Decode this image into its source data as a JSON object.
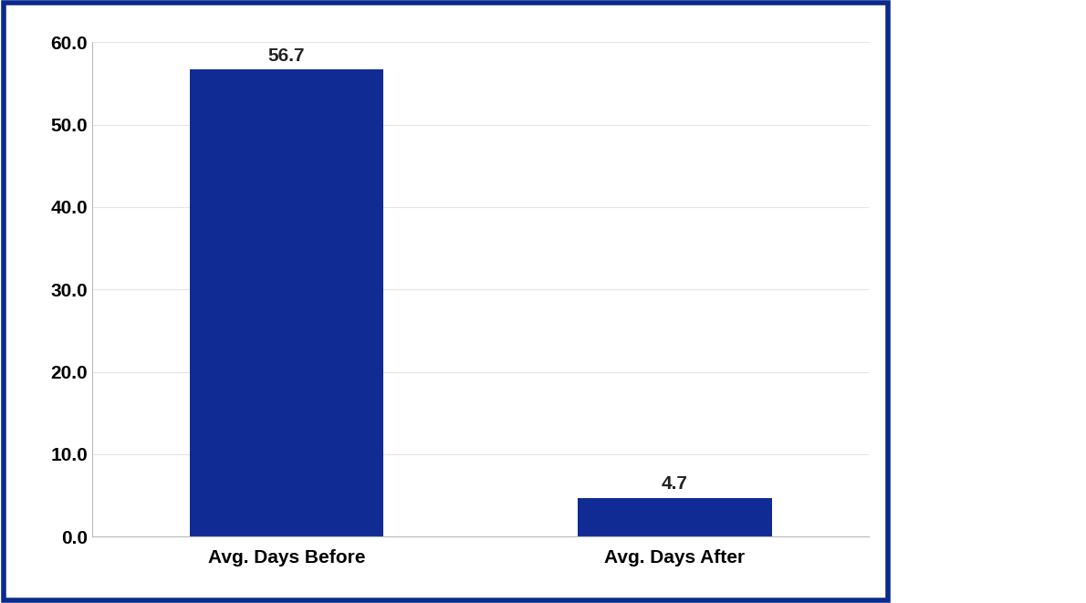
{
  "chart_data": {
    "type": "bar",
    "categories": [
      "Avg. Days Before",
      "Avg. Days After"
    ],
    "values": [
      56.7,
      4.7
    ],
    "color": "#102c94",
    "ylim": [
      0,
      60
    ],
    "yticks": [
      {
        "value": 0,
        "label": "0.0"
      },
      {
        "value": 10,
        "label": "10.0"
      },
      {
        "value": 20,
        "label": "20.0"
      },
      {
        "value": 30,
        "label": "30.0"
      },
      {
        "value": 40,
        "label": "40.0"
      },
      {
        "value": 50,
        "label": "50.0"
      },
      {
        "value": 60,
        "label": "60.0"
      }
    ],
    "grid": true,
    "data_labels": true
  }
}
